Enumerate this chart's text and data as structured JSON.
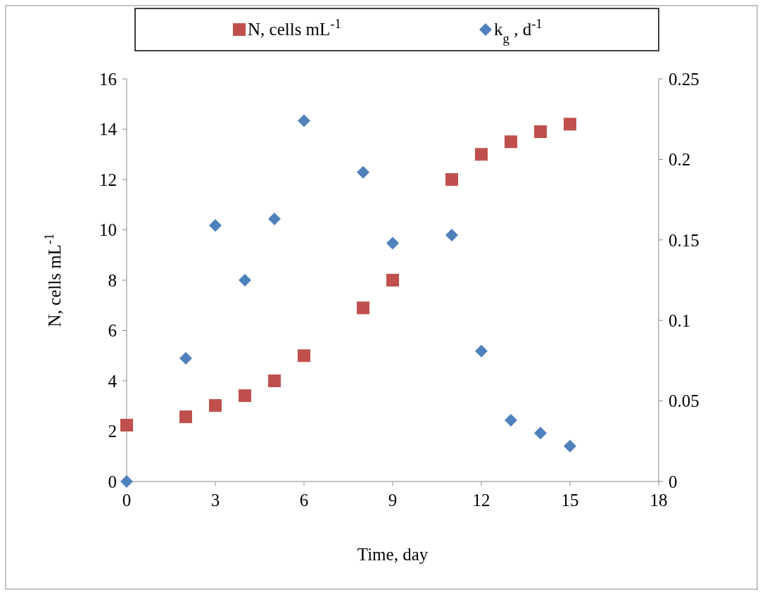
{
  "chart_data": {
    "type": "scatter",
    "xlabel": "Time, day",
    "ylabel": "N, cells mL$^{-1}$",
    "x": [
      0,
      2,
      3,
      4,
      5,
      6,
      8,
      9,
      11,
      12,
      13,
      14,
      15
    ],
    "xlim": [
      0,
      18
    ],
    "xticks": [
      0,
      3,
      6,
      9,
      12,
      15,
      18
    ],
    "ylim": [
      0,
      16
    ],
    "yticks": [
      0,
      2,
      4,
      6,
      8,
      10,
      12,
      14,
      16
    ],
    "y2lim": [
      0,
      0.25
    ],
    "y2ticks": [
      0,
      0.05,
      0.1,
      0.15,
      0.2,
      0.25
    ],
    "legend": "top",
    "grid": false,
    "series": [
      {
        "name": "N, cells mL$^{-1}$",
        "color": "#c0504d",
        "marker": "square",
        "values": [
          2.24,
          2.57,
          3.02,
          3.41,
          4.0,
          5.0,
          6.9,
          8.0,
          12.0,
          13.0,
          13.5,
          13.9,
          14.2
        ]
      },
      {
        "name": "k$_{g}$ , d$^{-1}$",
        "color": "#4f81bd",
        "marker": "diamond",
        "axis": "y2",
        "values": [
          0,
          0.0765,
          0.159,
          0.125,
          0.163,
          0.224,
          0.192,
          0.148,
          0.153,
          0.081,
          0.038,
          0.03,
          0.022
        ]
      }
    ]
  }
}
